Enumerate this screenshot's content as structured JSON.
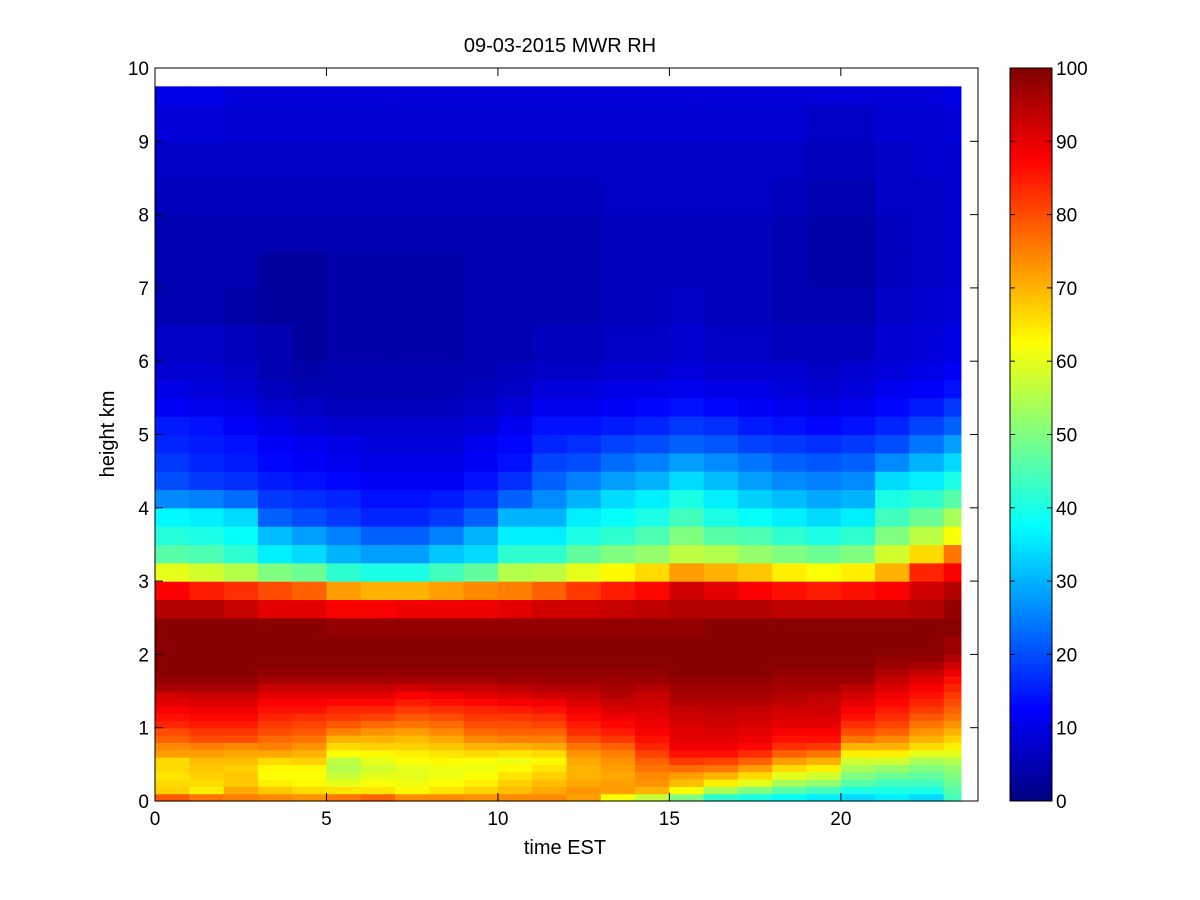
{
  "chart_data": {
    "type": "heatmap",
    "title": "09-03-2015 MWR RH",
    "xlabel": "time EST",
    "ylabel": "height km",
    "xlim": [
      0,
      24
    ],
    "ylim": [
      0,
      10
    ],
    "xticks": [
      "0",
      "5",
      "10",
      "15",
      "20"
    ],
    "yticks": [
      "0",
      "1",
      "2",
      "3",
      "4",
      "5",
      "6",
      "7",
      "8",
      "9",
      "10"
    ],
    "colorbar": {
      "min": 0,
      "max": 100,
      "ticks": [
        "0",
        "10",
        "20",
        "30",
        "40",
        "50",
        "60",
        "70",
        "80",
        "90",
        "100"
      ],
      "colormap": "jet"
    },
    "grid": false,
    "x_start": 0,
    "x_end": 23.5,
    "y_max": 9.75,
    "profile_heights_km": [
      0,
      0.1,
      0.2,
      0.3,
      0.4,
      0.5,
      0.6,
      0.7,
      0.8,
      0.9,
      1.0,
      1.1,
      1.2,
      1.3,
      1.4,
      1.5,
      1.6,
      1.7,
      1.8,
      1.9,
      2.0,
      2.25,
      2.5,
      2.75,
      3.0,
      3.25,
      3.5,
      3.75,
      4.0,
      4.25,
      4.5,
      4.75,
      5.0,
      5.25,
      5.5,
      5.75,
      6.0,
      6.5,
      7.0,
      7.5,
      8.0,
      8.5,
      9.0,
      9.5
    ],
    "profiles": [
      {
        "time": 0,
        "rh": [
          79,
          67,
          66,
          65,
          66,
          66,
          72,
          74,
          78,
          80,
          84,
          86,
          88,
          90,
          92,
          96,
          98,
          99,
          99,
          99,
          99,
          99,
          95,
          88,
          60,
          46,
          41,
          37,
          26,
          20,
          18,
          16,
          15,
          12,
          10,
          8,
          7,
          5,
          5,
          5,
          6,
          7,
          9,
          10
        ]
      },
      {
        "time": 1,
        "rh": [
          76,
          64,
          66,
          67,
          68,
          69,
          72,
          75,
          80,
          82,
          85,
          87,
          89,
          91,
          93,
          96,
          98,
          99,
          99,
          99,
          99,
          99,
          95,
          85,
          58,
          45,
          40,
          36,
          25,
          18,
          16,
          15,
          14,
          11,
          9,
          8,
          7,
          5,
          5,
          5,
          6,
          7,
          9,
          10
        ]
      },
      {
        "time": 2,
        "rh": [
          75,
          71,
          68,
          68,
          67,
          69,
          71,
          74,
          80,
          82,
          85,
          87,
          89,
          91,
          93,
          96,
          98,
          99,
          99,
          99,
          99,
          99,
          93,
          83,
          55,
          42,
          38,
          34,
          23,
          17,
          15,
          14,
          12,
          10,
          8,
          7,
          6,
          4,
          5,
          5,
          6,
          7,
          8,
          9
        ]
      },
      {
        "time": 3,
        "rh": [
          74,
          68,
          64,
          62,
          63,
          66,
          71,
          75,
          77,
          80,
          82,
          84,
          86,
          88,
          90,
          93,
          96,
          98,
          99,
          99,
          99,
          99,
          90,
          80,
          50,
          36,
          31,
          22,
          18,
          15,
          13,
          12,
          10,
          8,
          6,
          5,
          5,
          3,
          3,
          5,
          6,
          7,
          8,
          9
        ]
      },
      {
        "time": 4,
        "rh": [
          73,
          66,
          63,
          62,
          63,
          67,
          70,
          73,
          76,
          79,
          81,
          83,
          86,
          88,
          90,
          93,
          96,
          98,
          99,
          99,
          99,
          99,
          90,
          78,
          48,
          34,
          28,
          20,
          17,
          14,
          12,
          11,
          9,
          7,
          5,
          4,
          3,
          3,
          3,
          5,
          6,
          7,
          8,
          9
        ]
      },
      {
        "time": 5,
        "rh": [
          76,
          65,
          60,
          57,
          55,
          56,
          62,
          66,
          70,
          75,
          79,
          82,
          84,
          87,
          90,
          93,
          96,
          98,
          99,
          99,
          99,
          98,
          88,
          72,
          42,
          30,
          25,
          18,
          16,
          13,
          11,
          10,
          8,
          6,
          5,
          5,
          4,
          4,
          4,
          5,
          6,
          7,
          8,
          9
        ]
      },
      {
        "time": 6,
        "rh": [
          78,
          65,
          62,
          60,
          58,
          60,
          63,
          67,
          70,
          73,
          77,
          81,
          84,
          87,
          90,
          93,
          96,
          98,
          99,
          99,
          99,
          98,
          88,
          70,
          40,
          28,
          22,
          16,
          14,
          12,
          10,
          9,
          8,
          6,
          5,
          5,
          4,
          4,
          4,
          5,
          6,
          7,
          8,
          9
        ]
      },
      {
        "time": 7,
        "rh": [
          74,
          63,
          61,
          60,
          60,
          62,
          64,
          67,
          69,
          72,
          76,
          79,
          82,
          85,
          88,
          92,
          96,
          98,
          99,
          99,
          99,
          98,
          89,
          70,
          40,
          28,
          22,
          16,
          14,
          12,
          10,
          9,
          8,
          6,
          5,
          5,
          4,
          4,
          4,
          5,
          6,
          7,
          8,
          9
        ]
      },
      {
        "time": 8,
        "rh": [
          74,
          65,
          62,
          61,
          61,
          63,
          65,
          68,
          71,
          74,
          77,
          80,
          83,
          86,
          89,
          93,
          96,
          98,
          99,
          99,
          99,
          98,
          89,
          72,
          44,
          32,
          25,
          18,
          15,
          12,
          10,
          9,
          8,
          6,
          5,
          5,
          4,
          4,
          4,
          5,
          6,
          7,
          8,
          9
        ]
      },
      {
        "time": 9,
        "rh": [
          73,
          67,
          64,
          62,
          61,
          62,
          66,
          70,
          74,
          77,
          80,
          82,
          84,
          87,
          90,
          93,
          96,
          98,
          99,
          99,
          99,
          98,
          89,
          74,
          47,
          34,
          30,
          22,
          17,
          14,
          12,
          11,
          9,
          7,
          6,
          5,
          5,
          5,
          5,
          5,
          6,
          7,
          8,
          9
        ]
      },
      {
        "time": 10,
        "rh": [
          74,
          69,
          67,
          65,
          63,
          61,
          65,
          70,
          75,
          78,
          80,
          82,
          85,
          88,
          91,
          94,
          97,
          98,
          99,
          99,
          99,
          98,
          90,
          75,
          55,
          42,
          36,
          30,
          22,
          17,
          14,
          13,
          11,
          9,
          7,
          6,
          5,
          5,
          5,
          5,
          6,
          7,
          8,
          9
        ]
      },
      {
        "time": 11,
        "rh": [
          74,
          71,
          69,
          67,
          65,
          63,
          66,
          71,
          75,
          78,
          81,
          83,
          86,
          89,
          92,
          95,
          97,
          98,
          99,
          99,
          99,
          98,
          92,
          78,
          56,
          42,
          36,
          30,
          26,
          22,
          19,
          16,
          14,
          11,
          9,
          7,
          6,
          5,
          5,
          5,
          6,
          7,
          8,
          9
        ]
      },
      {
        "time": 12,
        "rh": [
          72,
          73,
          71,
          70,
          70,
          71,
          73,
          76,
          80,
          83,
          85,
          87,
          89,
          91,
          93,
          95,
          97,
          98,
          99,
          99,
          99,
          98,
          92,
          82,
          60,
          47,
          40,
          36,
          30,
          25,
          20,
          17,
          14,
          11,
          9,
          7,
          6,
          5,
          5,
          5,
          6,
          7,
          8,
          9
        ]
      },
      {
        "time": 13,
        "rh": [
          62,
          72,
          72,
          71,
          72,
          73,
          75,
          78,
          82,
          85,
          87,
          89,
          91,
          93,
          95,
          96,
          97,
          98,
          99,
          99,
          99,
          98,
          93,
          85,
          63,
          50,
          42,
          38,
          34,
          28,
          23,
          19,
          15,
          12,
          10,
          8,
          7,
          6,
          6,
          6,
          7,
          7,
          8,
          9
        ]
      },
      {
        "time": 14,
        "rh": [
          57,
          70,
          73,
          74,
          76,
          78,
          81,
          84,
          86,
          88,
          89,
          90,
          91,
          92,
          93,
          95,
          97,
          98,
          99,
          99,
          99,
          98,
          94,
          87,
          66,
          52,
          45,
          40,
          36,
          30,
          25,
          20,
          16,
          13,
          10,
          8,
          7,
          6,
          6,
          6,
          7,
          7,
          8,
          9
        ]
      },
      {
        "time": 15,
        "rh": [
          50,
          62,
          69,
          72,
          77,
          82,
          86,
          89,
          90,
          90,
          91,
          92,
          93,
          95,
          96,
          97,
          98,
          99,
          99,
          99,
          99,
          98,
          95,
          92,
          72,
          56,
          50,
          44,
          40,
          34,
          28,
          22,
          18,
          14,
          11,
          9,
          8,
          7,
          6,
          6,
          7,
          7,
          8,
          9
        ]
      },
      {
        "time": 16,
        "rh": [
          42,
          54,
          64,
          70,
          76,
          81,
          86,
          89,
          90,
          91,
          92,
          93,
          94,
          95,
          96,
          97,
          98,
          99,
          99,
          99,
          99,
          99,
          95,
          90,
          70,
          55,
          46,
          40,
          36,
          31,
          26,
          21,
          17,
          13,
          10,
          8,
          7,
          6,
          6,
          6,
          7,
          7,
          8,
          9
        ]
      },
      {
        "time": 17,
        "rh": [
          40,
          50,
          60,
          66,
          72,
          78,
          83,
          87,
          89,
          90,
          91,
          92,
          93,
          95,
          96,
          97,
          98,
          99,
          99,
          99,
          99,
          99,
          95,
          88,
          68,
          52,
          45,
          38,
          33,
          28,
          24,
          19,
          15,
          12,
          10,
          8,
          7,
          6,
          6,
          6,
          7,
          7,
          8,
          9
        ]
      },
      {
        "time": 18,
        "rh": [
          38,
          46,
          54,
          60,
          66,
          72,
          78,
          83,
          86,
          88,
          90,
          91,
          92,
          94,
          95,
          96,
          97,
          98,
          99,
          99,
          99,
          99,
          94,
          86,
          64,
          50,
          42,
          36,
          31,
          26,
          22,
          18,
          14,
          11,
          9,
          8,
          6,
          5,
          5,
          5,
          6,
          7,
          8,
          9
        ]
      },
      {
        "time": 19,
        "rh": [
          36,
          44,
          52,
          58,
          64,
          70,
          76,
          82,
          86,
          88,
          90,
          91,
          92,
          93,
          94,
          96,
          97,
          98,
          99,
          99,
          99,
          99,
          94,
          85,
          62,
          48,
          40,
          34,
          29,
          25,
          21,
          17,
          13,
          10,
          8,
          7,
          6,
          5,
          4,
          4,
          5,
          6,
          7,
          9
        ]
      },
      {
        "time": 20,
        "rh": [
          34,
          40,
          46,
          50,
          54,
          58,
          64,
          70,
          76,
          80,
          83,
          86,
          88,
          90,
          92,
          94,
          97,
          98,
          99,
          99,
          99,
          99,
          94,
          86,
          64,
          50,
          42,
          36,
          30,
          26,
          22,
          18,
          14,
          11,
          9,
          8,
          6,
          5,
          4,
          4,
          5,
          6,
          7,
          9
        ]
      },
      {
        "time": 21,
        "rh": [
          36,
          40,
          44,
          48,
          52,
          58,
          64,
          70,
          74,
          78,
          81,
          83,
          85,
          87,
          89,
          91,
          93,
          95,
          97,
          98,
          99,
          99,
          94,
          88,
          70,
          58,
          50,
          44,
          40,
          34,
          26,
          20,
          16,
          13,
          11,
          9,
          8,
          7,
          6,
          6,
          7,
          7,
          8,
          9
        ]
      },
      {
        "time": 22,
        "rh": [
          34,
          40,
          44,
          47,
          50,
          54,
          60,
          66,
          70,
          73,
          76,
          79,
          82,
          84,
          86,
          88,
          90,
          93,
          96,
          98,
          99,
          99,
          95,
          92,
          84,
          66,
          56,
          48,
          42,
          36,
          30,
          24,
          19,
          15,
          12,
          10,
          9,
          8,
          7,
          7,
          7,
          8,
          8,
          9
        ]
      },
      {
        "time": 23,
        "rh": [
          44,
          46,
          48,
          50,
          52,
          55,
          60,
          64,
          67,
          70,
          73,
          76,
          78,
          80,
          82,
          84,
          86,
          89,
          92,
          95,
          97,
          99,
          98,
          95,
          88,
          76,
          62,
          54,
          46,
          40,
          34,
          28,
          22,
          18,
          14,
          12,
          10,
          9,
          8,
          8,
          8,
          8,
          9,
          10
        ]
      }
    ]
  }
}
